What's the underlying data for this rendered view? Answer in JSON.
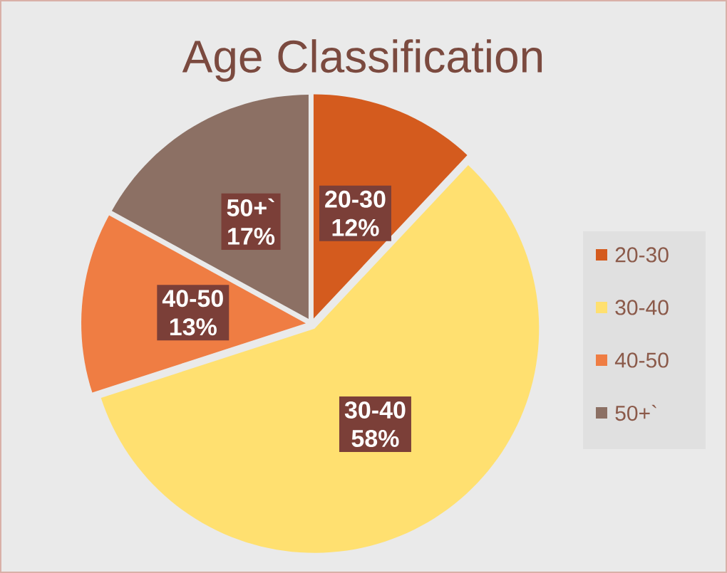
{
  "chart_data": {
    "type": "pie",
    "title": "Age Classification",
    "categories": [
      "20-30",
      "30-40",
      "40-50",
      "50+`"
    ],
    "values": [
      12,
      58,
      13,
      17
    ],
    "value_labels": [
      "12%",
      "58%",
      "13%",
      "17%"
    ],
    "colors": [
      "#d45b1e",
      "#ffe070",
      "#ef7d43",
      "#8c7064"
    ],
    "legend": "right"
  }
}
